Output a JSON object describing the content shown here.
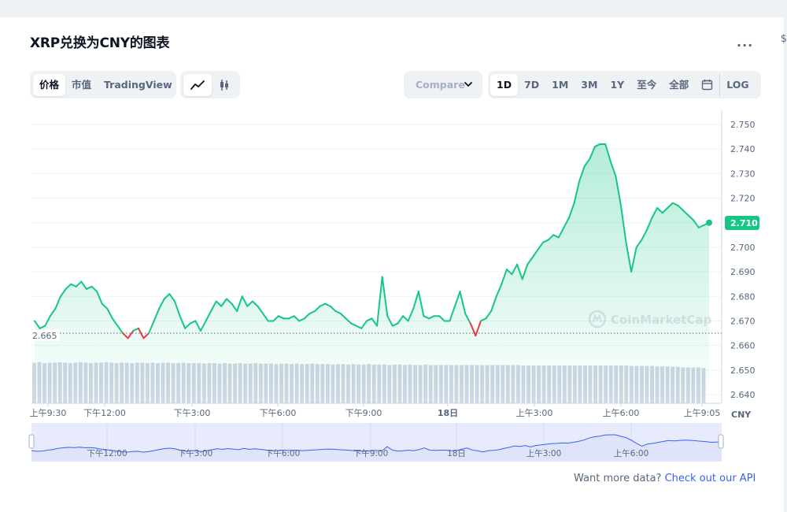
{
  "title": "XRP兑换为CNY的图表",
  "more_label": "...",
  "edge_glyph": "$",
  "tabs": [
    "价格",
    "市值",
    "TradingView"
  ],
  "active_tab": "价格",
  "chart_types": [
    {
      "icon": "line-chart-icon",
      "active": true
    },
    {
      "icon": "candlestick-icon",
      "active": false
    }
  ],
  "compare_placeholder": "Compare",
  "ranges": [
    "1D",
    "7D",
    "1M",
    "3M",
    "1Y",
    "至今",
    "全部"
  ],
  "active_range": "1D",
  "log_label": "LOG",
  "colors": {
    "up": "#16c784",
    "down": "#ea3943",
    "volume": "#cfd6e4",
    "nav_line": "#3861fb",
    "nav_fill": "#dfe4fa"
  },
  "chart_data": {
    "type": "line",
    "y_ticks": [
      "2.750",
      "2.740",
      "2.730",
      "2.720",
      "2.710",
      "2.700",
      "2.690",
      "2.680",
      "2.670",
      "2.660",
      "2.650",
      "2.640"
    ],
    "x_labels": [
      "上午9:30",
      "下午12:00",
      "下午3:00",
      "下午6:00",
      "下午9:00",
      "18日",
      "上午3:00",
      "上午6:00",
      "上午9:05"
    ],
    "ylim": [
      2.64,
      2.75
    ],
    "reference_price": "2.665",
    "current_price": "2.710",
    "currency": "CNY",
    "watermark": "CoinMarketCap",
    "series": [
      {
        "values": [
          2.67,
          2.667,
          2.668,
          2.672,
          2.675,
          2.68,
          2.683,
          2.685,
          2.684,
          2.686,
          2.683,
          2.684,
          2.682,
          2.677,
          2.675,
          2.671,
          2.668,
          2.665,
          2.663,
          2.666,
          2.667,
          2.663,
          2.665,
          2.67,
          2.675,
          2.679,
          2.681,
          2.678,
          2.672,
          2.667,
          2.669,
          2.67,
          2.666,
          2.67,
          2.674,
          2.678,
          2.676,
          2.679,
          2.677,
          2.674,
          2.68,
          2.676,
          2.678,
          2.676,
          2.673,
          2.67,
          2.67,
          2.672,
          2.671,
          2.671,
          2.672,
          2.67,
          2.671,
          2.673,
          2.674,
          2.676,
          2.677,
          2.676,
          2.674,
          2.673,
          2.671,
          2.669,
          2.668,
          2.667,
          2.67,
          2.671,
          2.668,
          2.688,
          2.672,
          2.668,
          2.669,
          2.672,
          2.67,
          2.675,
          2.682,
          2.672,
          2.671,
          2.672,
          2.672,
          2.67,
          2.67,
          2.676,
          2.682,
          2.673,
          2.669,
          2.664,
          2.67,
          2.671,
          2.674,
          2.68,
          2.685,
          2.691,
          2.689,
          2.693,
          2.687,
          2.693,
          2.696,
          2.699,
          2.702,
          2.703,
          2.705,
          2.704,
          2.708,
          2.712,
          2.718,
          2.727,
          2.733,
          2.736,
          2.741,
          2.742,
          2.742,
          2.735,
          2.729,
          2.717,
          2.702,
          2.69,
          2.7,
          2.703,
          2.707,
          2.712,
          2.716,
          2.714,
          2.716,
          2.718,
          2.717,
          2.715,
          2.713,
          2.711,
          2.708,
          2.709,
          2.71
        ]
      }
    ],
    "volume": [
      0.86,
      0.87,
      0.85,
      0.86,
      0.86,
      0.87,
      0.86,
      0.85,
      0.86,
      0.87,
      0.86,
      0.85,
      0.86,
      0.86,
      0.87,
      0.86,
      0.85,
      0.86,
      0.86,
      0.85,
      0.86,
      0.86,
      0.85,
      0.86,
      0.85,
      0.86,
      0.86,
      0.85,
      0.85,
      0.86,
      0.85,
      0.85,
      0.85,
      0.84,
      0.85,
      0.85,
      0.84,
      0.85,
      0.84,
      0.84,
      0.85,
      0.84,
      0.84,
      0.85,
      0.84,
      0.84,
      0.84,
      0.83,
      0.84,
      0.84,
      0.83,
      0.84,
      0.83,
      0.83,
      0.84,
      0.83,
      0.83,
      0.83,
      0.82,
      0.83,
      0.83,
      0.82,
      0.83,
      0.82,
      0.82,
      0.83,
      0.82,
      0.82,
      0.82,
      0.81,
      0.82,
      0.82,
      0.81,
      0.82,
      0.81,
      0.81,
      0.82,
      0.81,
      0.81,
      0.81,
      0.81,
      0.81,
      0.81,
      0.81,
      0.81,
      0.81,
      0.81,
      0.81,
      0.81,
      0.81,
      0.81,
      0.81,
      0.81,
      0.81,
      0.81,
      0.8,
      0.8,
      0.8,
      0.8,
      0.8,
      0.8,
      0.8,
      0.8,
      0.8,
      0.8,
      0.8,
      0.8,
      0.8,
      0.8,
      0.8,
      0.8,
      0.8,
      0.8,
      0.8,
      0.8,
      0.8,
      0.79,
      0.79,
      0.79,
      0.79,
      0.79,
      0.78,
      0.78,
      0.78,
      0.77,
      0.77,
      0.76,
      0.76,
      0.76,
      0.76,
      0.75
    ],
    "navigator_labels": [
      "下午12:00",
      "下午3:00",
      "下午6:00",
      "下午9:00",
      "18日",
      "上午3:00",
      "上午6:00"
    ]
  },
  "footer": {
    "prefix": "Want more data?",
    "link": "Check out our API"
  }
}
